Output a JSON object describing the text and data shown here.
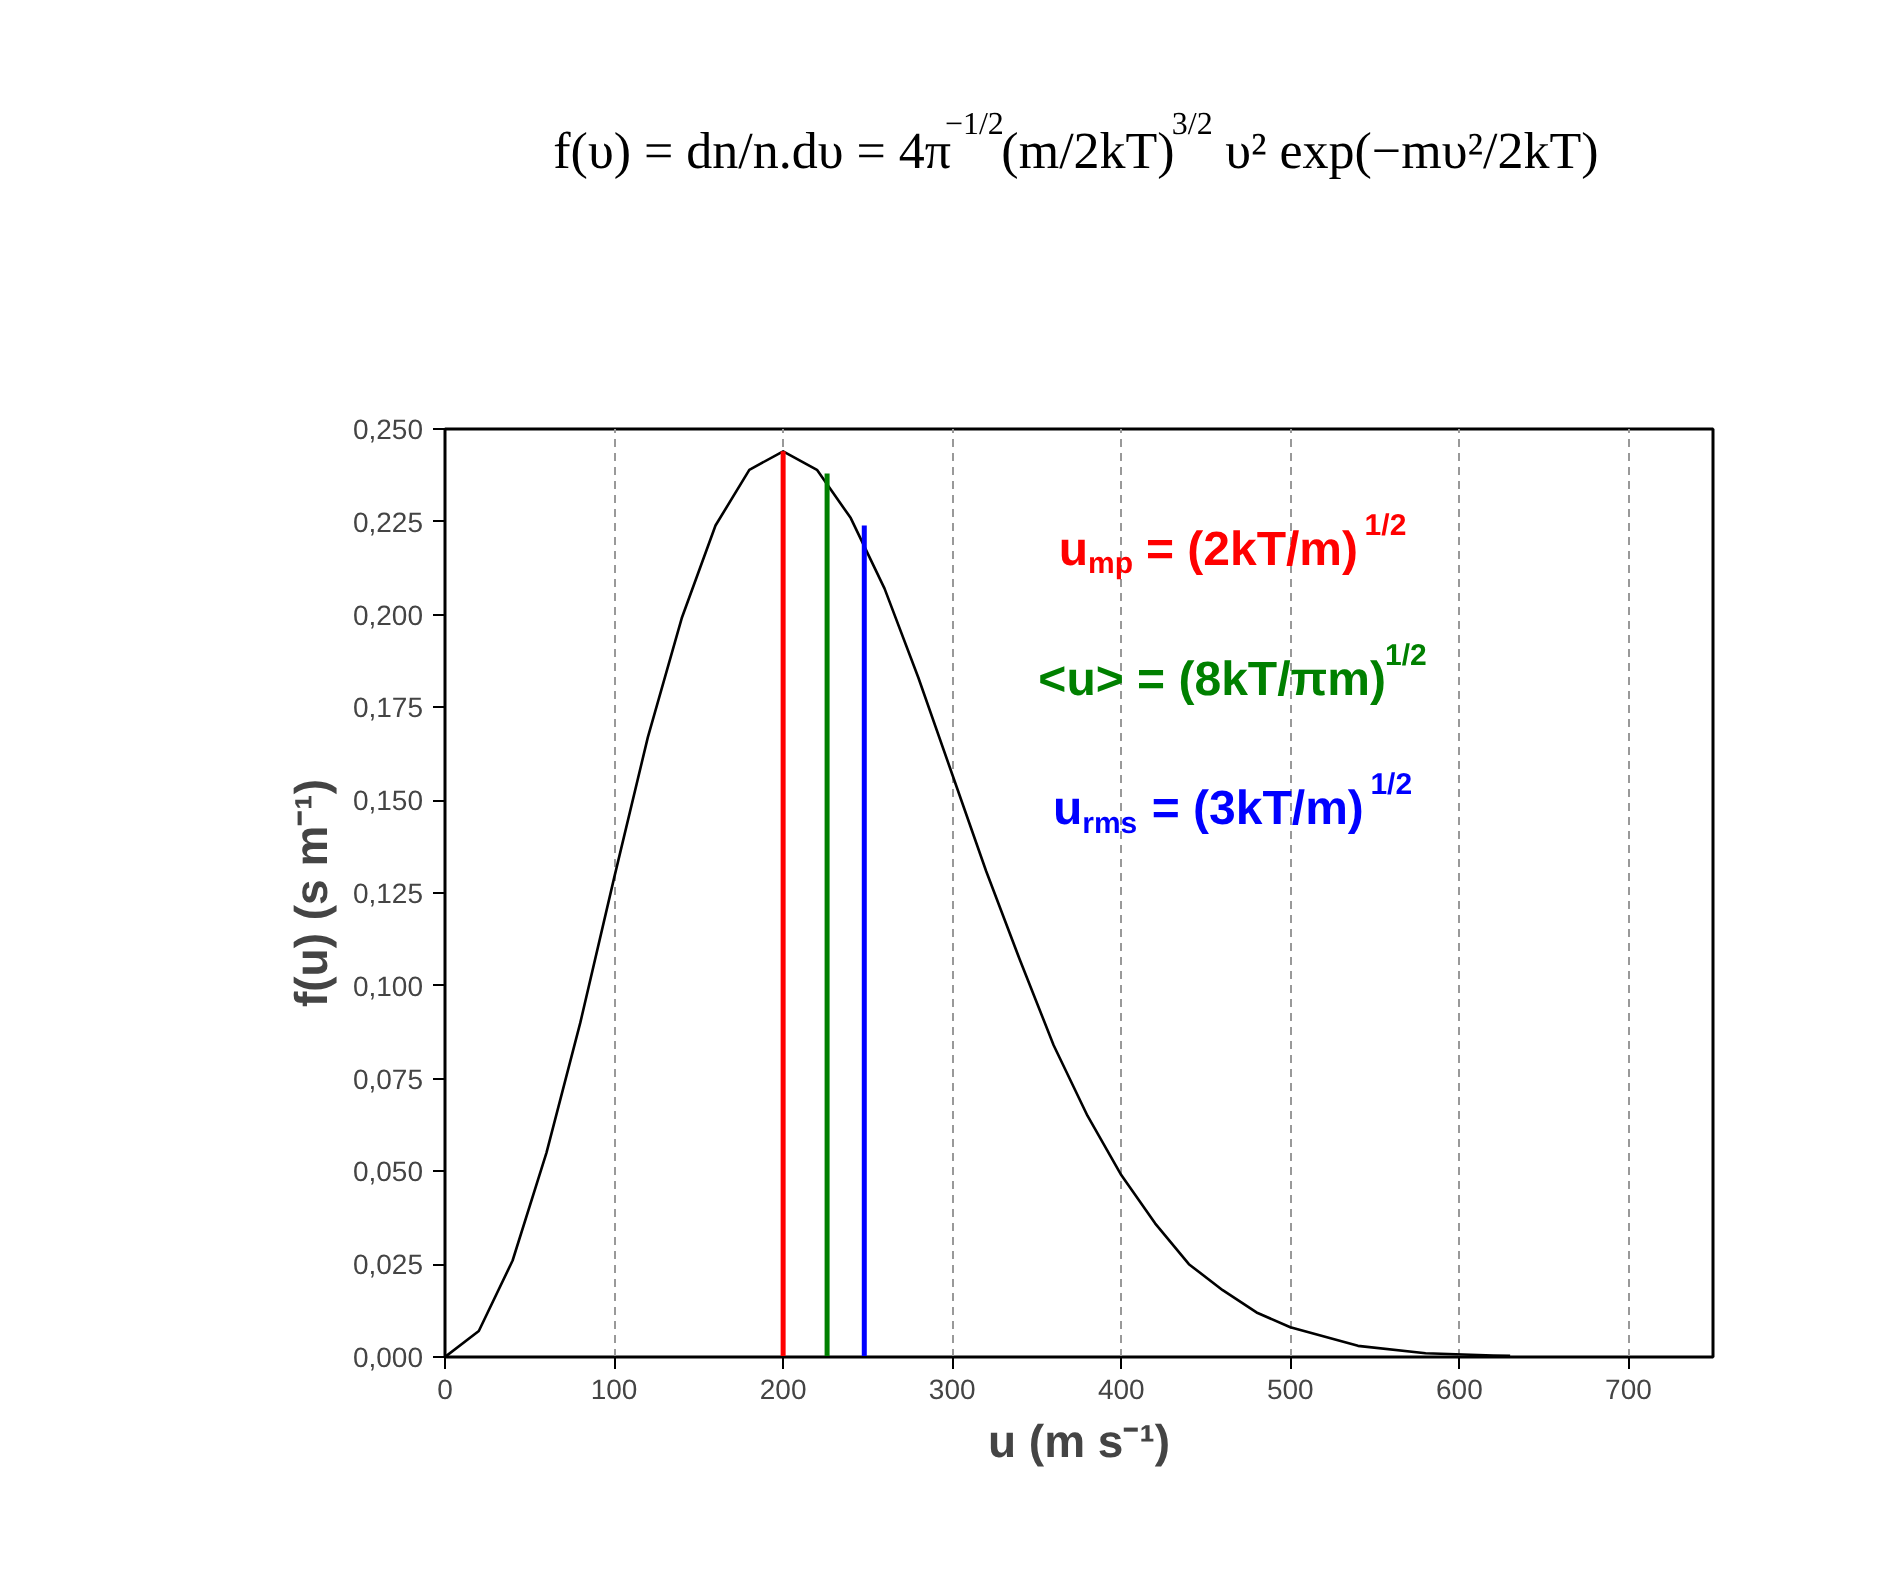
{
  "chart_data": {
    "type": "line",
    "title": "f(υ) = dn/n.dυ = 4π$^{−1/2}$(m/2kT)$^{3/2}$ υ² exp(−mυ²/2kT)",
    "xlabel": "u (m s⁻¹)",
    "ylabel": "f(u) (s m⁻¹)",
    "series": [
      {
        "color": "#000000",
        "x": [
          0,
          20,
          40,
          60,
          80,
          100,
          120,
          140,
          160,
          180,
          200,
          220,
          240,
          260,
          280,
          300,
          320,
          340,
          360,
          380,
          400,
          420,
          440,
          460,
          480,
          500,
          540,
          580,
          620,
          630
        ],
        "values": [
          0,
          0.007,
          0.026,
          0.055,
          0.09,
          0.129,
          0.167,
          0.199,
          0.224,
          0.239,
          0.244,
          0.239,
          0.226,
          0.207,
          0.183,
          0.157,
          0.131,
          0.107,
          0.084,
          0.065,
          0.049,
          0.036,
          0.025,
          0.018,
          0.012,
          0.008,
          0.003,
          0.001,
          0.0004,
          0.0003
        ]
      },
      {
        "name": "u$_{mp}$ = (2kT/m)$^{1/2}$",
        "color": "#ff0000",
        "x": [
          200,
          200
        ],
        "values": [
          0,
          0.244
        ]
      },
      {
        "name": "<u> = (8kT/πm)$^{1/2}$",
        "color": "#008000",
        "x": [
          226,
          226
        ],
        "values": [
          0,
          0.238
        ]
      },
      {
        "name": "u$_{rms}$ = (3kT/m)$^{1/2}$",
        "color": "#0000ff",
        "x": [
          248,
          248
        ],
        "values": [
          0,
          0.224
        ]
      }
    ],
    "xlim": [
      0,
      750
    ],
    "xticks": [
      0,
      100,
      200,
      300,
      400,
      500,
      600,
      700
    ],
    "ylim": [
      0,
      0.25
    ],
    "yticks": [
      {
        "value": 0,
        "label": "0,000"
      },
      {
        "value": 0.025,
        "label": "0,025"
      },
      {
        "value": 0.05,
        "label": "0,050"
      },
      {
        "value": 0.075,
        "label": "0,075"
      },
      {
        "value": 0.1,
        "label": "0,100"
      },
      {
        "value": 0.125,
        "label": "0,125"
      },
      {
        "value": 0.15,
        "label": "0,150"
      },
      {
        "value": 0.175,
        "label": "0,175"
      },
      {
        "value": 0.2,
        "label": "0,200"
      },
      {
        "value": 0.225,
        "label": "0,225"
      },
      {
        "value": 0.25,
        "label": "0,250"
      }
    ],
    "grid": "x",
    "marker": "none",
    "line_style": "solid"
  }
}
